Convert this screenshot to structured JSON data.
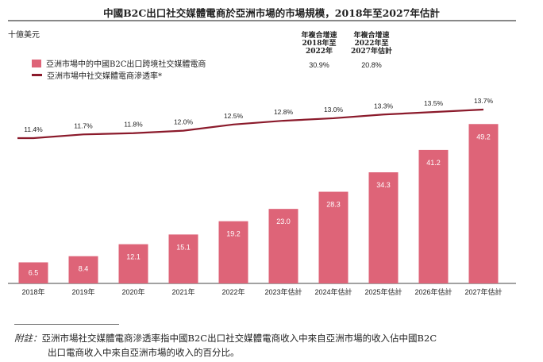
{
  "chart_data": {
    "type": "bar+line",
    "title": "中國B2C出口社交媒體電商於亞洲市場的市場規模，2018年至2027年估計",
    "unit_label": "十億美元",
    "categories": [
      "2018年",
      "2019年",
      "2020年",
      "2021年",
      "2022年",
      "2023年估計",
      "2024年估計",
      "2025年估計",
      "2026年估計",
      "2027年估計"
    ],
    "series": [
      {
        "name": "亞洲市場中的中國B2C出口跨境社交媒體電商",
        "type": "bar",
        "color": "#de6478",
        "values": [
          6.5,
          8.4,
          12.1,
          15.1,
          19.2,
          23.0,
          28.3,
          34.3,
          41.2,
          49.2
        ],
        "labels": [
          "6.5",
          "8.4",
          "12.1",
          "15.1",
          "19.2",
          "23.0",
          "28.3",
          "34.3",
          "41.2",
          "49.2"
        ]
      },
      {
        "name": "亞洲市場中社交媒體電商滲透率*",
        "type": "line",
        "color": "#8b1a2b",
        "values": [
          11.4,
          11.7,
          11.8,
          12.0,
          12.5,
          12.8,
          13.0,
          13.3,
          13.5,
          13.7
        ],
        "labels": [
          "11.4%",
          "11.7%",
          "11.8%",
          "12.0%",
          "12.5%",
          "12.8%",
          "13.0%",
          "13.3%",
          "13.5%",
          "13.7%"
        ]
      }
    ],
    "cagr": [
      {
        "heading": [
          "年複合增速",
          "2018年至",
          "2022年"
        ],
        "value": "30.9%"
      },
      {
        "heading": [
          "年複合增速",
          "2022年至",
          "2027年估計"
        ],
        "value": "20.8%"
      }
    ],
    "legend": "top-left",
    "grid": false
  },
  "footnote": {
    "label": "附註：",
    "line1": "亞洲市場社交媒體電商滲透率指中國B2C出口社交媒體電商收入中來自亞洲市場的收入佔中國B2C",
    "line2": "出口電商收入中來自亞洲市場的收入的百分比。"
  }
}
